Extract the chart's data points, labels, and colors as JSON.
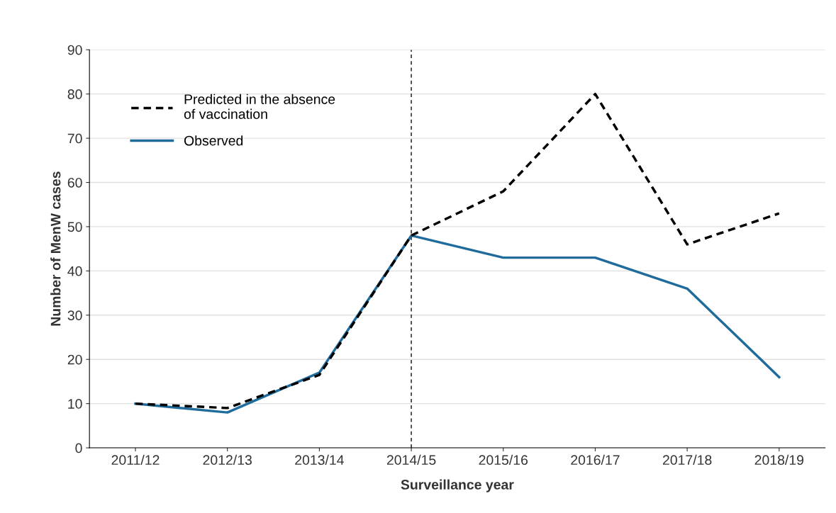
{
  "chart_data": {
    "type": "line",
    "xlabel": "Surveillance year",
    "ylabel": "Number of MenW cases",
    "categories": [
      "2011/12",
      "2012/13",
      "2013/14",
      "2014/15",
      "2015/16",
      "2016/17",
      "2017/18",
      "2018/19"
    ],
    "series": [
      {
        "name": "Predicted in the absence\nof vaccination",
        "color": "#000000",
        "line_style": "dashed",
        "values": [
          10,
          9,
          16.5,
          48,
          58,
          80,
          46,
          53
        ]
      },
      {
        "name": "Observed",
        "color": "#1f6b9c",
        "line_style": "solid",
        "values": [
          10,
          8,
          17,
          48,
          43,
          43,
          36,
          16
        ]
      }
    ],
    "ylim": [
      0,
      90
    ],
    "yticks": [
      0,
      10,
      20,
      30,
      40,
      50,
      60,
      70,
      80,
      90
    ],
    "ref_lines": [
      {
        "axis": "x",
        "value": "2014/15",
        "color": "#333333",
        "line_style": "dashed"
      }
    ],
    "grid": "y",
    "legend": "top left",
    "marker": "none"
  }
}
